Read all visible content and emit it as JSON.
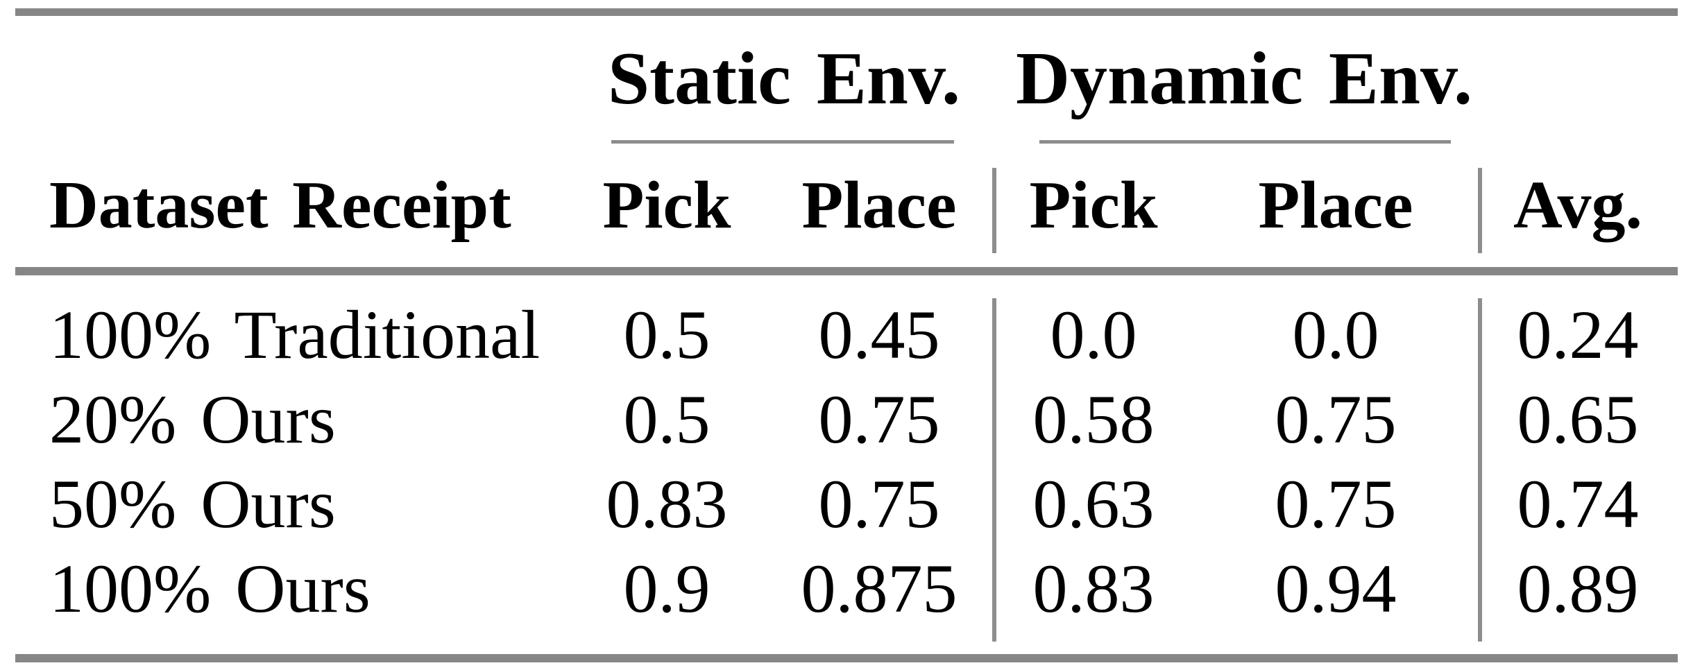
{
  "table": {
    "group_headers": {
      "static": "Static Env.",
      "dynamic": "Dynamic Env."
    },
    "column_headers": {
      "dataset": "Dataset Receipt",
      "static_pick": "Pick",
      "static_place": "Place",
      "dynamic_pick": "Pick",
      "dynamic_place": "Place",
      "avg": "Avg."
    },
    "rows": [
      {
        "label": "100% Traditional",
        "values": [
          "0.5",
          "0.45",
          "0.0",
          "0.0",
          "0.24"
        ]
      },
      {
        "label": "20% Ours",
        "values": [
          "0.5",
          "0.75",
          "0.58",
          "0.75",
          "0.65"
        ]
      },
      {
        "label": "50% Ours",
        "values": [
          "0.83",
          "0.75",
          "0.63",
          "0.75",
          "0.74"
        ]
      },
      {
        "label": "100% Ours",
        "values": [
          "0.9",
          "0.875",
          "0.83",
          "0.94",
          "0.89"
        ]
      }
    ]
  },
  "colors": {
    "rule_gray_thick": "#868686",
    "rule_gray_thin": "#8d8d8d",
    "text": "#000000",
    "background": "#ffffff"
  },
  "chart_data": {
    "type": "table",
    "column_groups": [
      "",
      "Static Env.",
      "Static Env.",
      "Dynamic Env.",
      "Dynamic Env.",
      ""
    ],
    "columns": [
      "Dataset Receipt",
      "Pick",
      "Place",
      "Pick",
      "Place",
      "Avg."
    ],
    "rows": [
      [
        "100% Traditional",
        0.5,
        0.45,
        0.0,
        0.0,
        0.24
      ],
      [
        "20% Ours",
        0.5,
        0.75,
        0.58,
        0.75,
        0.65
      ],
      [
        "50% Ours",
        0.83,
        0.75,
        0.63,
        0.75,
        0.74
      ],
      [
        "100% Ours",
        0.9,
        0.875,
        0.83,
        0.94,
        0.89
      ]
    ]
  }
}
